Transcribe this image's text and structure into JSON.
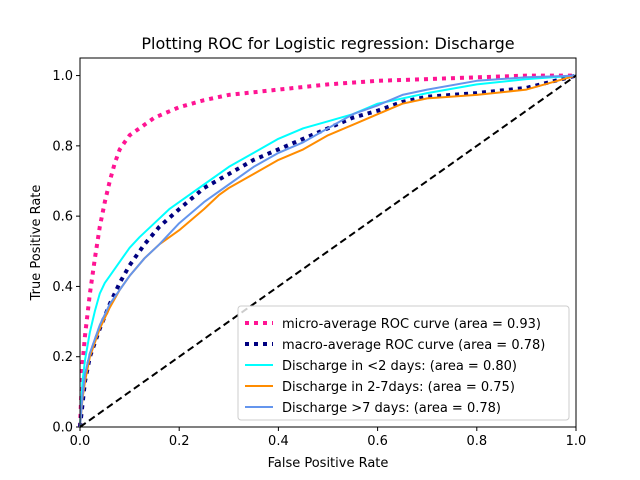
{
  "chart_data": {
    "type": "line",
    "title": "Plotting ROC for Logistic regression: Discharge",
    "xlabel": "False Positive Rate",
    "ylabel": "True Positive Rate",
    "xlim": [
      0.0,
      1.0
    ],
    "ylim": [
      0.0,
      1.05
    ],
    "x_ticks": [
      0.0,
      0.2,
      0.4,
      0.6,
      0.8,
      1.0
    ],
    "y_ticks": [
      0.0,
      0.2,
      0.4,
      0.6,
      0.8,
      1.0
    ],
    "x_tick_labels": [
      "0.0",
      "0.2",
      "0.4",
      "0.6",
      "0.8",
      "1.0"
    ],
    "y_tick_labels": [
      "0.0",
      "0.2",
      "0.4",
      "0.6",
      "0.8",
      "1.0"
    ],
    "grid": false,
    "legend_position": "lower right",
    "series": [
      {
        "name": "micro-average ROC curve (area = 0.93)",
        "color": "#ff1493",
        "style": "dotted",
        "x": [
          0.0,
          0.005,
          0.01,
          0.02,
          0.03,
          0.04,
          0.05,
          0.06,
          0.07,
          0.08,
          0.09,
          0.1,
          0.12,
          0.15,
          0.2,
          0.25,
          0.3,
          0.4,
          0.5,
          0.6,
          0.7,
          0.8,
          0.9,
          1.0
        ],
        "y": [
          0.0,
          0.18,
          0.26,
          0.38,
          0.48,
          0.57,
          0.64,
          0.7,
          0.75,
          0.79,
          0.81,
          0.83,
          0.85,
          0.88,
          0.91,
          0.93,
          0.945,
          0.96,
          0.975,
          0.985,
          0.99,
          0.995,
          1.0,
          1.0
        ]
      },
      {
        "name": "macro-average ROC curve (area = 0.78)",
        "color": "#000080",
        "style": "dotted",
        "x": [
          0.0,
          0.01,
          0.02,
          0.04,
          0.06,
          0.08,
          0.1,
          0.13,
          0.16,
          0.2,
          0.25,
          0.3,
          0.35,
          0.4,
          0.45,
          0.5,
          0.55,
          0.6,
          0.65,
          0.7,
          0.8,
          0.9,
          1.0
        ],
        "y": [
          0.0,
          0.13,
          0.2,
          0.28,
          0.35,
          0.41,
          0.46,
          0.52,
          0.57,
          0.62,
          0.68,
          0.72,
          0.76,
          0.79,
          0.82,
          0.85,
          0.88,
          0.9,
          0.925,
          0.94,
          0.95,
          0.965,
          1.0
        ]
      },
      {
        "name": "Discharge in <2 days: (area = 0.80)",
        "color": "#00ffff",
        "style": "solid",
        "x": [
          0.0,
          0.005,
          0.01,
          0.02,
          0.03,
          0.04,
          0.05,
          0.06,
          0.08,
          0.1,
          0.12,
          0.15,
          0.18,
          0.2,
          0.25,
          0.3,
          0.35,
          0.4,
          0.45,
          0.5,
          0.55,
          0.6,
          0.7,
          0.8,
          0.9,
          1.0
        ],
        "y": [
          0.0,
          0.13,
          0.19,
          0.27,
          0.33,
          0.38,
          0.41,
          0.43,
          0.47,
          0.51,
          0.54,
          0.58,
          0.62,
          0.64,
          0.69,
          0.74,
          0.78,
          0.82,
          0.85,
          0.87,
          0.89,
          0.92,
          0.95,
          0.975,
          0.99,
          1.0
        ]
      },
      {
        "name": "Discharge in 2-7days: (area = 0.75)",
        "color": "#ff8c00",
        "style": "solid",
        "x": [
          0.0,
          0.005,
          0.01,
          0.02,
          0.04,
          0.06,
          0.08,
          0.1,
          0.13,
          0.16,
          0.2,
          0.25,
          0.28,
          0.3,
          0.35,
          0.4,
          0.45,
          0.5,
          0.55,
          0.6,
          0.65,
          0.7,
          0.8,
          0.9,
          1.0
        ],
        "y": [
          0.0,
          0.08,
          0.13,
          0.2,
          0.28,
          0.34,
          0.39,
          0.43,
          0.48,
          0.52,
          0.56,
          0.62,
          0.66,
          0.68,
          0.72,
          0.76,
          0.79,
          0.83,
          0.86,
          0.89,
          0.92,
          0.935,
          0.945,
          0.96,
          1.0
        ]
      },
      {
        "name": "Discharge >7 days: (area = 0.78)",
        "color": "#6495ed",
        "style": "solid",
        "x": [
          0.0,
          0.005,
          0.01,
          0.02,
          0.04,
          0.06,
          0.08,
          0.1,
          0.13,
          0.16,
          0.2,
          0.25,
          0.3,
          0.35,
          0.4,
          0.45,
          0.5,
          0.55,
          0.6,
          0.65,
          0.7,
          0.8,
          0.9,
          1.0
        ],
        "y": [
          0.0,
          0.09,
          0.15,
          0.21,
          0.29,
          0.35,
          0.39,
          0.43,
          0.48,
          0.52,
          0.58,
          0.64,
          0.69,
          0.74,
          0.78,
          0.81,
          0.85,
          0.89,
          0.915,
          0.945,
          0.96,
          0.985,
          0.995,
          1.0
        ]
      }
    ],
    "reference_line": {
      "color": "#000000",
      "style": "dashed",
      "x": [
        0.0,
        1.0
      ],
      "y": [
        0.0,
        1.0
      ]
    }
  }
}
